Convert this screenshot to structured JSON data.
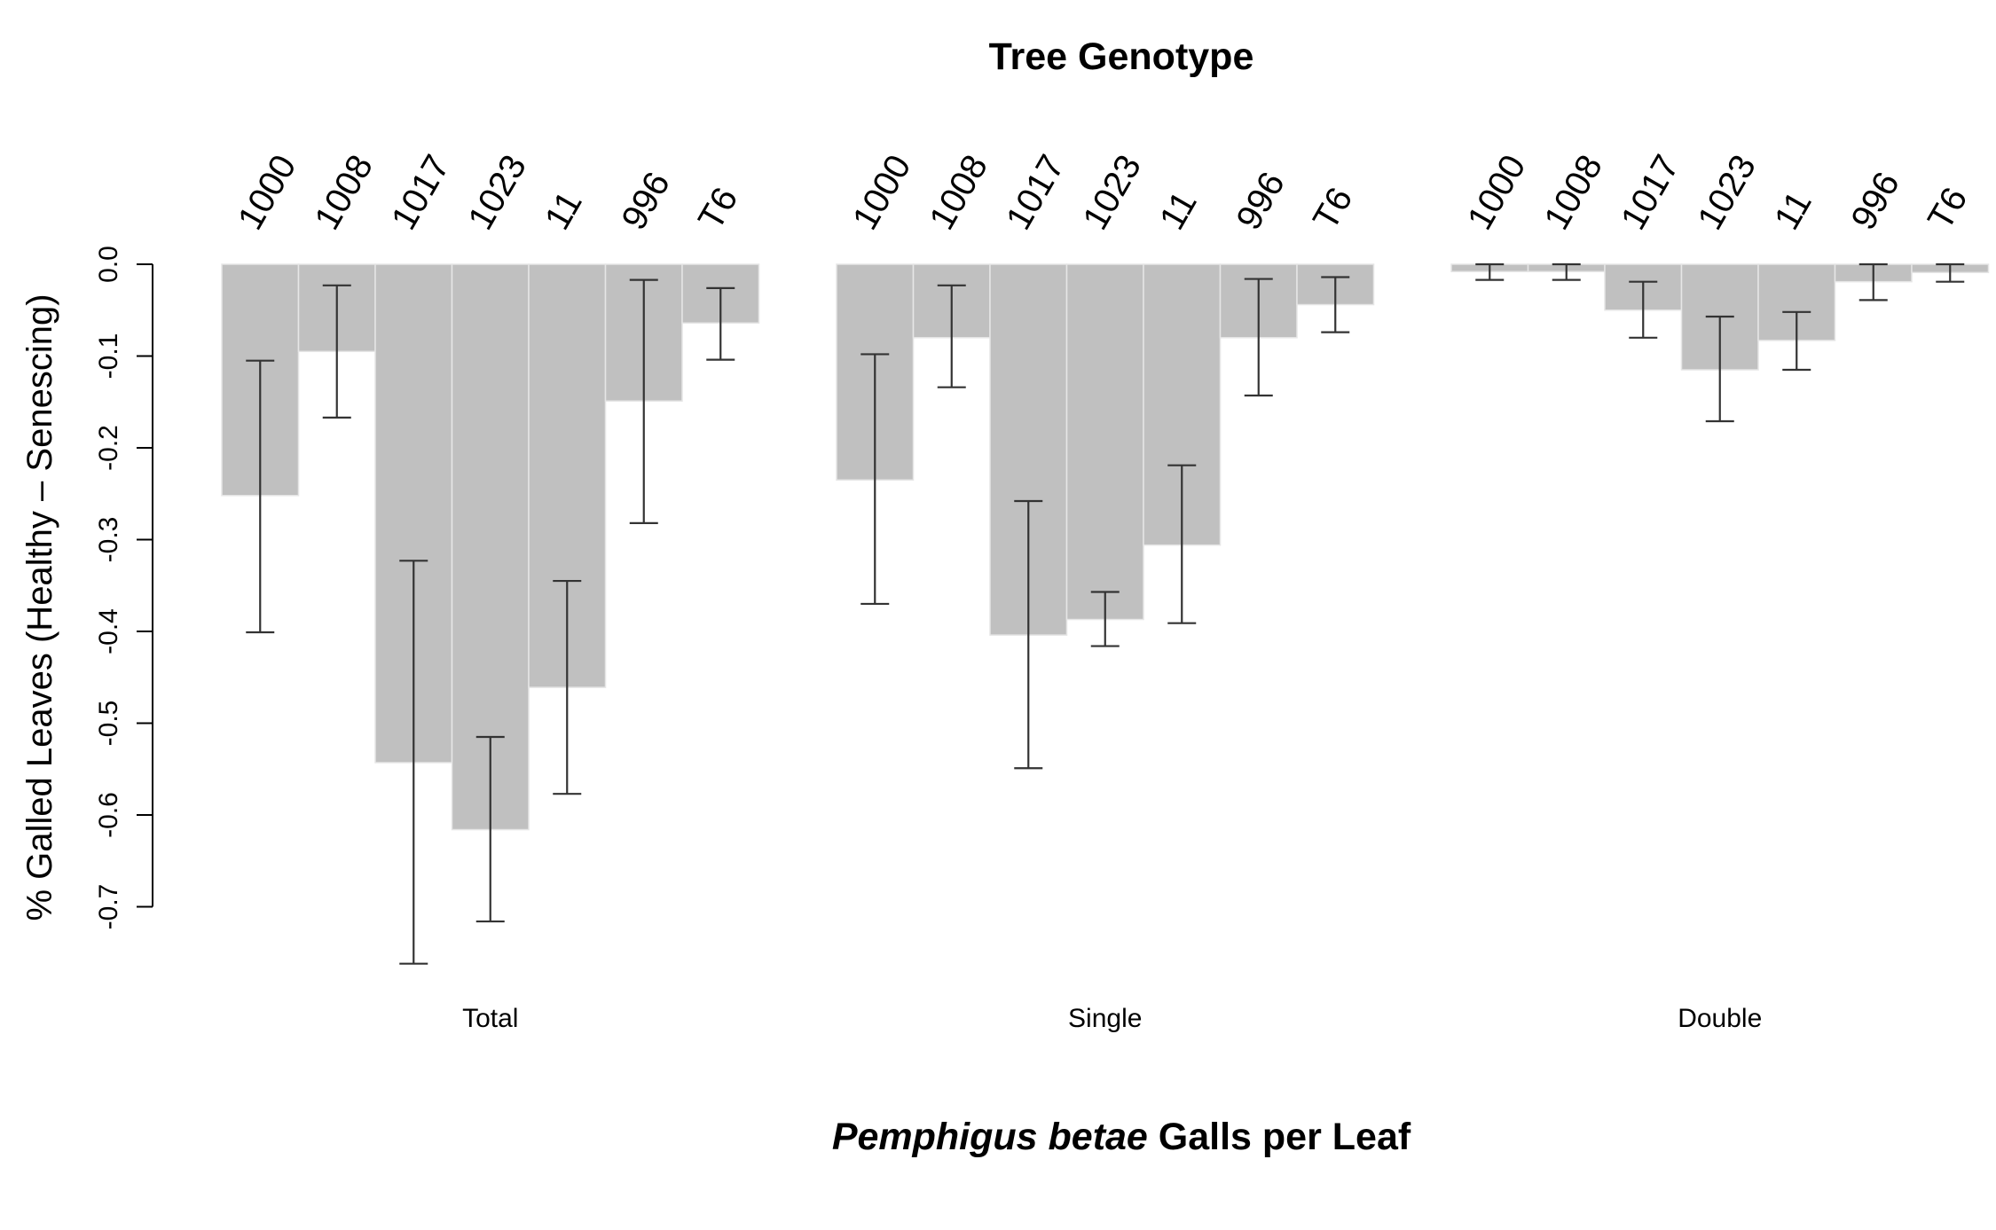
{
  "chart_data": {
    "type": "bar",
    "title": "Tree Genotype",
    "xlabel_italic": "Pemphigus betae",
    "xlabel_rest": " Galls per Leaf",
    "ylabel": "% Galled Leaves (Healthy – Senescing)",
    "ylim": [
      -0.8,
      0.0
    ],
    "yticks": [
      {
        "value": 0.0,
        "label": "0.0"
      },
      {
        "value": -0.1,
        "label": "-0.1"
      },
      {
        "value": -0.2,
        "label": "-0.2"
      },
      {
        "value": -0.3,
        "label": "-0.3"
      },
      {
        "value": -0.4,
        "label": "-0.4"
      },
      {
        "value": -0.5,
        "label": "-0.5"
      },
      {
        "value": -0.6,
        "label": "-0.6"
      },
      {
        "value": -0.7,
        "label": "-0.7"
      }
    ],
    "categories": [
      "1000",
      "1008",
      "1017",
      "1023",
      "11",
      "996",
      "T6"
    ],
    "bar_color": "#c0c0c0",
    "errorbar_color": "#333333",
    "groups": [
      {
        "name": "Total",
        "values": [
          -0.252,
          -0.095,
          -0.543,
          -0.616,
          -0.461,
          -0.149,
          -0.064
        ],
        "err_low": [
          -0.401,
          -0.167,
          -0.762,
          -0.716,
          -0.577,
          -0.282,
          -0.104
        ],
        "err_high": [
          -0.105,
          -0.023,
          -0.323,
          -0.515,
          -0.345,
          -0.017,
          -0.026
        ]
      },
      {
        "name": "Single",
        "values": [
          -0.235,
          -0.08,
          -0.404,
          -0.387,
          -0.306,
          -0.08,
          -0.044
        ],
        "err_low": [
          -0.37,
          -0.134,
          -0.549,
          -0.416,
          -0.391,
          -0.143,
          -0.074
        ],
        "err_high": [
          -0.098,
          -0.023,
          -0.258,
          -0.357,
          -0.219,
          -0.016,
          -0.014
        ]
      },
      {
        "name": "Double",
        "values": [
          -0.008,
          -0.008,
          -0.05,
          -0.115,
          -0.083,
          -0.019,
          -0.009
        ],
        "err_low": [
          -0.017,
          -0.017,
          -0.08,
          -0.171,
          -0.115,
          -0.039,
          -0.019
        ],
        "err_high": [
          0.0,
          0.0,
          -0.019,
          -0.057,
          -0.052,
          0.0,
          0.0
        ]
      }
    ]
  }
}
